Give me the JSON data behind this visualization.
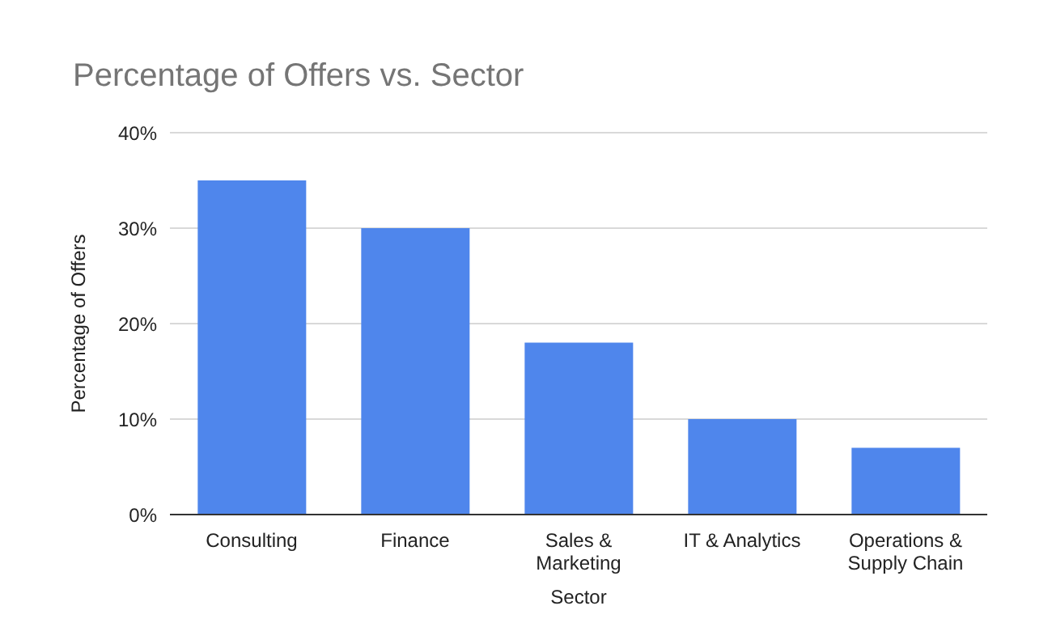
{
  "chart_data": {
    "type": "bar",
    "title": "Percentage of Offers vs. Sector",
    "xlabel": "Sector",
    "ylabel": "Percentage of Offers",
    "categories": [
      "Consulting",
      "Finance",
      "Sales & Marketing",
      "IT & Analytics",
      "Operations & Supply Chain"
    ],
    "values": [
      35,
      30,
      18,
      10,
      7
    ],
    "color": "#4f86ec",
    "ylim": [
      0,
      40
    ],
    "yticks": [
      {
        "value": 0,
        "label": "0%"
      },
      {
        "value": 10,
        "label": "10%"
      },
      {
        "value": 20,
        "label": "20%"
      },
      {
        "value": 30,
        "label": "30%"
      },
      {
        "value": 40,
        "label": "40%"
      }
    ],
    "grid": "y",
    "legend": false
  }
}
